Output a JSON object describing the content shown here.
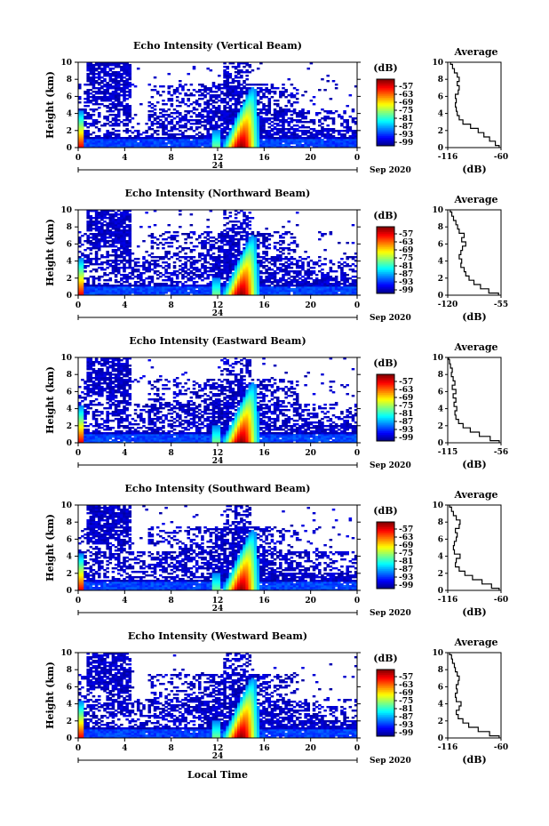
{
  "chart_data": [
    {
      "type": "heatmap",
      "title": "Echo Intensity (Vertical Beam)",
      "ylabel": "Height (km)",
      "x_ticks": [
        "0",
        "4",
        "8",
        "12",
        "16",
        "20",
        "0"
      ],
      "y_ticks": [
        "0",
        "2",
        "4",
        "6",
        "8",
        "10"
      ],
      "xlim": [
        0,
        24
      ],
      "ylim": [
        0,
        10
      ],
      "date_day": "24",
      "date_label": "Sep 2020",
      "colorbar": {
        "unit": "(dB)",
        "ticks": [
          "-57",
          "-63",
          "-69",
          "-75",
          "-81",
          "-87",
          "-93",
          "-99"
        ],
        "range": [
          -99,
          -57
        ]
      },
      "profile": {
        "title": "Average",
        "xlabel": "(dB)",
        "x_ticks": [
          "-116",
          "-60"
        ],
        "xlim": [
          -116,
          -60
        ],
        "y_ticks": [
          "0",
          "2",
          "4",
          "6",
          "8",
          "10"
        ],
        "heights": [
          0,
          0.5,
          1,
          1.5,
          2,
          2.5,
          3,
          3.5,
          4,
          4.5,
          5,
          5.5,
          6,
          6.5,
          7,
          7.5,
          8,
          8.5,
          9,
          9.5,
          10
        ],
        "values": [
          -62,
          -66,
          -72,
          -78,
          -84,
          -92,
          -100,
          -104,
          -106,
          -107,
          -108,
          -107,
          -108,
          -105,
          -104,
          -106,
          -104,
          -106,
          -109,
          -111,
          -113
        ]
      }
    },
    {
      "type": "heatmap",
      "title": "Echo Intensity (Northward Beam)",
      "ylabel": "Height (km)",
      "x_ticks": [
        "0",
        "4",
        "8",
        "12",
        "16",
        "20",
        "0"
      ],
      "y_ticks": [
        "0",
        "2",
        "4",
        "6",
        "8",
        "10"
      ],
      "xlim": [
        0,
        24
      ],
      "ylim": [
        0,
        10
      ],
      "date_day": "24",
      "date_label": "Sep 2020",
      "colorbar": {
        "unit": "(dB)",
        "ticks": [
          "-57",
          "-63",
          "-69",
          "-75",
          "-81",
          "-87",
          "-93",
          "-99"
        ],
        "range": [
          -99,
          -57
        ]
      },
      "profile": {
        "title": "Average",
        "xlabel": "(dB)",
        "x_ticks": [
          "-120",
          "-55"
        ],
        "xlim": [
          -120,
          -55
        ],
        "y_ticks": [
          "0",
          "2",
          "4",
          "6",
          "8",
          "10"
        ],
        "heights": [
          0,
          0.5,
          1,
          1.5,
          2,
          2.5,
          3,
          3.5,
          4,
          4.5,
          5,
          5.5,
          6,
          6.5,
          7,
          7.5,
          8,
          8.5,
          9,
          9.5,
          10
        ],
        "values": [
          -58,
          -70,
          -80,
          -88,
          -94,
          -98,
          -100,
          -104,
          -103,
          -106,
          -104,
          -102,
          -98,
          -103,
          -100,
          -106,
          -108,
          -110,
          -113,
          -115,
          -117
        ]
      }
    },
    {
      "type": "heatmap",
      "title": "Echo Intensity (Eastward Beam)",
      "ylabel": "Height (km)",
      "x_ticks": [
        "0",
        "4",
        "8",
        "12",
        "16",
        "20",
        "0"
      ],
      "y_ticks": [
        "0",
        "2",
        "4",
        "6",
        "8",
        "10"
      ],
      "xlim": [
        0,
        24
      ],
      "ylim": [
        0,
        10
      ],
      "date_day": "24",
      "date_label": "Sep 2020",
      "colorbar": {
        "unit": "(dB)",
        "ticks": [
          "-57",
          "-63",
          "-69",
          "-75",
          "-81",
          "-87",
          "-93",
          "-99"
        ],
        "range": [
          -99,
          -57
        ]
      },
      "profile": {
        "title": "Average",
        "xlabel": "(dB)",
        "x_ticks": [
          "-115",
          "-56"
        ],
        "xlim": [
          -115,
          -56
        ],
        "y_ticks": [
          "0",
          "2",
          "4",
          "6",
          "8",
          "10"
        ],
        "heights": [
          0,
          0.5,
          1,
          1.5,
          2,
          2.5,
          3,
          3.5,
          4,
          4.5,
          5,
          5.5,
          6,
          6.5,
          7,
          7.5,
          8,
          8.5,
          9,
          9.5,
          10
        ],
        "values": [
          -58,
          -68,
          -80,
          -90,
          -98,
          -103,
          -106,
          -107,
          -105,
          -108,
          -106,
          -109,
          -106,
          -110,
          -107,
          -109,
          -111,
          -110,
          -112,
          -113,
          -114
        ]
      }
    },
    {
      "type": "heatmap",
      "title": "Echo Intensity (Southward Beam)",
      "ylabel": "Height (km)",
      "x_ticks": [
        "0",
        "4",
        "8",
        "12",
        "16",
        "20",
        "0"
      ],
      "y_ticks": [
        "0",
        "2",
        "4",
        "6",
        "8",
        "10"
      ],
      "xlim": [
        0,
        24
      ],
      "ylim": [
        0,
        10
      ],
      "date_day": "24",
      "date_label": "Sep 2020",
      "colorbar": {
        "unit": "(dB)",
        "ticks": [
          "-57",
          "-63",
          "-69",
          "-75",
          "-81",
          "-87",
          "-93",
          "-99"
        ],
        "range": [
          -99,
          -57
        ]
      },
      "profile": {
        "title": "Average",
        "xlabel": "(dB)",
        "x_ticks": [
          "-116",
          "-60"
        ],
        "xlim": [
          -116,
          -60
        ],
        "y_ticks": [
          "0",
          "2",
          "4",
          "6",
          "8",
          "10"
        ],
        "heights": [
          0,
          0.5,
          1,
          1.5,
          2,
          2.5,
          3,
          3.5,
          4,
          4.5,
          5,
          5.5,
          6,
          6.5,
          7,
          7.5,
          8,
          8.5,
          9,
          9.5,
          10
        ],
        "values": [
          -62,
          -70,
          -80,
          -90,
          -98,
          -104,
          -108,
          -107,
          -103,
          -109,
          -110,
          -109,
          -107,
          -106,
          -108,
          -104,
          -103,
          -107,
          -110,
          -112,
          -114
        ]
      }
    },
    {
      "type": "heatmap",
      "title": "Echo Intensity (Westward Beam)",
      "ylabel": "Height (km)",
      "x_ticks": [
        "0",
        "4",
        "8",
        "12",
        "16",
        "20",
        "0"
      ],
      "y_ticks": [
        "0",
        "2",
        "4",
        "6",
        "8",
        "10"
      ],
      "xlim": [
        0,
        24
      ],
      "ylim": [
        0,
        10
      ],
      "date_day": "24",
      "date_label": "Sep 2020",
      "xlabel": "Local Time",
      "colorbar": {
        "unit": "(dB)",
        "ticks": [
          "-57",
          "-63",
          "-69",
          "-75",
          "-81",
          "-87",
          "-93",
          "-99"
        ],
        "range": [
          -99,
          -57
        ]
      },
      "profile": {
        "title": "Average",
        "xlabel": "(dB)",
        "x_ticks": [
          "-116",
          "-60"
        ],
        "xlim": [
          -116,
          -60
        ],
        "y_ticks": [
          "0",
          "2",
          "4",
          "6",
          "8",
          "10"
        ],
        "heights": [
          0,
          0.5,
          1,
          1.5,
          2,
          2.5,
          3,
          3.5,
          4,
          4.5,
          5,
          5.5,
          6,
          6.5,
          7,
          7.5,
          8,
          8.5,
          9,
          9.5,
          10
        ],
        "values": [
          -62,
          -72,
          -84,
          -94,
          -100,
          -105,
          -107,
          -104,
          -102,
          -107,
          -108,
          -106,
          -107,
          -105,
          -104,
          -106,
          -108,
          -109,
          -111,
          -112,
          -114
        ]
      }
    }
  ]
}
